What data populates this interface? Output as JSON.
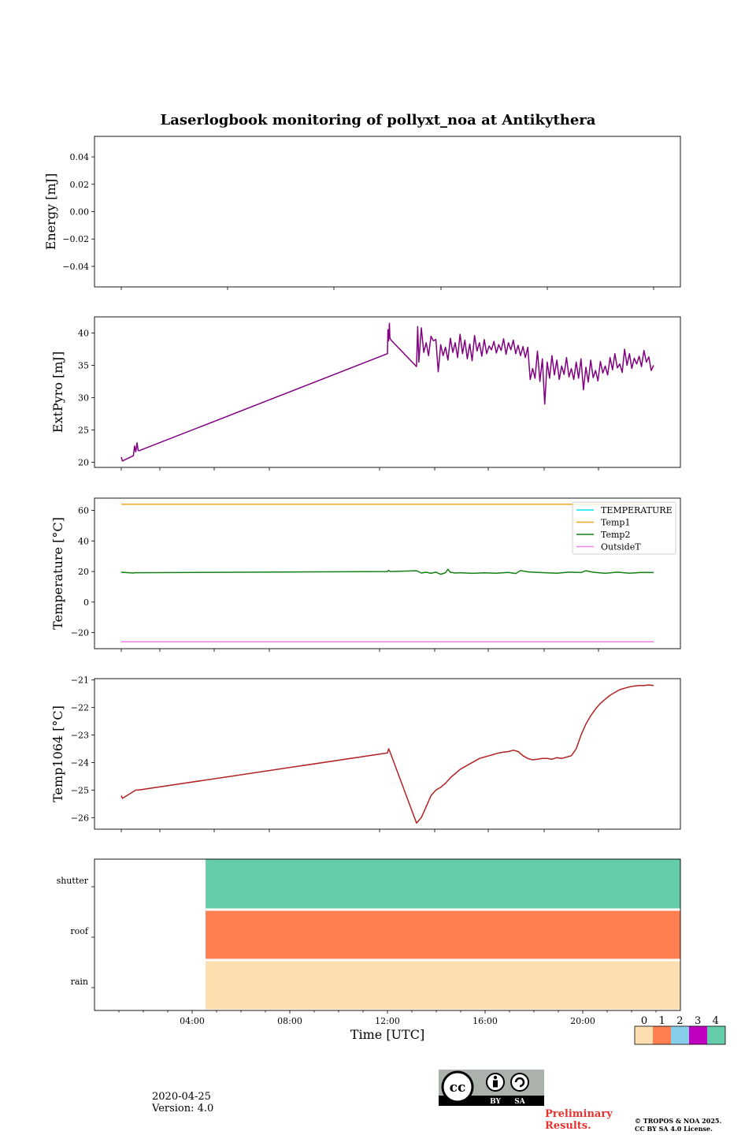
{
  "title": "Laserlogbook monitoring of pollyxt_noa at Antikythera",
  "footer": {
    "date": "2020-04-25",
    "version": "Version: 4.0",
    "preliminary": [
      "Preliminary",
      "Results."
    ],
    "copyright": [
      "© TROPOS & NOA 2025.",
      "CC BY SA 4.0 License."
    ],
    "cc_badge": {
      "by": "BY",
      "sa": "SA"
    }
  },
  "colors": {
    "extpyro": "#800080",
    "temperature": "#00e5ee",
    "temp1": "#f5a623",
    "temp2": "#128012",
    "outside": "#ee82ee",
    "temp1064": "#b22222",
    "flag0": "#fddeb1",
    "flag1": "#ff7f50",
    "flag2": "#87ceeb",
    "flag3": "#c000c0",
    "flag4": "#66cdaa"
  },
  "chart_data": [
    {
      "type": "line",
      "panel": "energy",
      "ylabel": "Energy [mJ]",
      "ylim": [
        -0.055,
        0.055
      ],
      "yticks": [
        0.04,
        0.02,
        0.0,
        -0.02,
        -0.04
      ],
      "ytick_labels": [
        "0.04",
        "0.02",
        "0.00",
        "−0.02",
        "−0.04"
      ],
      "series": []
    },
    {
      "type": "line",
      "panel": "extpyro",
      "ylabel": "ExtPyro [mJ]",
      "ylim": [
        19.2,
        42.5
      ],
      "yticks": [
        20,
        25,
        30,
        35,
        40
      ],
      "ytick_labels": [
        "20",
        "25",
        "30",
        "35",
        "40"
      ],
      "series": [
        {
          "color_key": "extpyro",
          "x": [
            1.0,
            1.05,
            1.5,
            1.55,
            1.6,
            1.65,
            1.7,
            1.75,
            12.0,
            12.02,
            12.05,
            12.08,
            12.1,
            12.15,
            13.2,
            13.25,
            13.3,
            13.4,
            13.5,
            13.6,
            13.7,
            13.8,
            13.9,
            14.0,
            14.1,
            14.2,
            14.3,
            14.4,
            14.5,
            14.6,
            14.7,
            14.8,
            14.9,
            15.0,
            15.1,
            15.2,
            15.3,
            15.4,
            15.5,
            15.6,
            15.7,
            15.8,
            15.9,
            16.0,
            16.1,
            16.2,
            16.3,
            16.4,
            16.5,
            16.6,
            16.7,
            16.8,
            16.9,
            17.0,
            17.1,
            17.2,
            17.3,
            17.4,
            17.5,
            17.6,
            17.7,
            17.8,
            17.9,
            18.0,
            18.1,
            18.2,
            18.3,
            18.4,
            18.5,
            18.6,
            18.7,
            18.8,
            18.9,
            19.0,
            19.1,
            19.2,
            19.3,
            19.4,
            19.5,
            19.6,
            19.7,
            19.8,
            19.9,
            20.0,
            20.1,
            20.2,
            20.3,
            20.4,
            20.5,
            20.6,
            20.7,
            20.8,
            20.9,
            21.0,
            21.1,
            21.2,
            21.3,
            21.4,
            21.5,
            21.6,
            21.7,
            21.8,
            21.9,
            22.0,
            22.1,
            22.2,
            22.3,
            22.4,
            22.5,
            22.6,
            22.7,
            22.8,
            22.9,
            23.0
          ],
          "y": [
            20.8,
            20.2,
            21.0,
            22.5,
            21.6,
            23.0,
            21.8,
            21.8,
            36.8,
            40.5,
            38.8,
            41.5,
            39.2,
            38.9,
            34.8,
            41.0,
            35.5,
            40.8,
            37.0,
            38.5,
            36.5,
            39.5,
            38.8,
            39.0,
            34.0,
            38.2,
            36.5,
            37.8,
            35.8,
            39.2,
            37.0,
            38.5,
            36.2,
            39.8,
            36.8,
            38.9,
            36.0,
            38.3,
            35.7,
            39.6,
            37.2,
            38.5,
            36.4,
            39.0,
            36.8,
            38.0,
            37.4,
            38.7,
            36.9,
            38.2,
            37.3,
            39.1,
            36.7,
            38.5,
            37.4,
            38.9,
            36.8,
            38.1,
            36.5,
            37.9,
            36.2,
            37.8,
            32.8,
            34.5,
            33.0,
            37.2,
            32.5,
            36.0,
            29.0,
            35.5,
            33.0,
            36.5,
            33.5,
            35.8,
            32.8,
            34.9,
            33.6,
            36.2,
            33.2,
            34.5,
            32.8,
            35.5,
            33.0,
            36.0,
            31.2,
            34.7,
            32.4,
            35.8,
            33.1,
            34.2,
            32.6,
            35.6,
            33.8,
            34.9,
            33.5,
            36.2,
            34.3,
            36.8,
            34.6,
            35.2,
            33.9,
            37.5,
            35.0,
            36.8,
            34.5,
            36.1,
            35.2,
            36.4,
            34.8,
            37.3,
            35.5,
            36.3,
            34.2,
            35.0
          ]
        }
      ]
    },
    {
      "type": "line",
      "panel": "temperature",
      "ylabel": "Temperature [°C]",
      "ylim": [
        -30.5,
        68
      ],
      "yticks": [
        60,
        40,
        20,
        0,
        -20
      ],
      "ytick_labels": [
        "60",
        "40",
        "20",
        "0",
        "−20"
      ],
      "legend": "top-right",
      "series": [
        {
          "name": "TEMPERATURE",
          "color_key": "temperature",
          "x": [],
          "y": []
        },
        {
          "name": "Temp1",
          "color_key": "temp1",
          "x": [
            1.0,
            23.0
          ],
          "y": [
            64,
            64
          ]
        },
        {
          "name": "Temp2",
          "color_key": "temp2",
          "x": [
            1.0,
            1.5,
            1.55,
            12.0,
            12.05,
            12.1,
            13.2,
            13.4,
            13.6,
            13.8,
            14.0,
            14.2,
            14.4,
            14.5,
            14.6,
            14.8,
            15.0,
            15.5,
            16.0,
            16.5,
            17.0,
            17.3,
            17.5,
            17.8,
            18.0,
            18.5,
            19.0,
            19.5,
            20.0,
            20.2,
            20.5,
            21.0,
            21.5,
            22.0,
            22.5,
            23.0
          ],
          "y": [
            19.5,
            19.0,
            19.2,
            20.0,
            20.8,
            20.0,
            20.5,
            19.0,
            19.5,
            18.8,
            19.6,
            18.2,
            19.2,
            21.5,
            19.5,
            19.0,
            19.2,
            18.8,
            19.1,
            18.9,
            19.4,
            18.7,
            20.6,
            19.8,
            19.6,
            19.2,
            18.9,
            19.6,
            19.3,
            20.5,
            19.5,
            18.8,
            19.6,
            18.9,
            19.4,
            19.3
          ]
        },
        {
          "name": "OutsideT",
          "color_key": "outside",
          "x": [
            1.0,
            23.0
          ],
          "y": [
            -26,
            -26
          ]
        }
      ]
    },
    {
      "type": "line",
      "panel": "temp1064",
      "ylabel": "Temp1064 [°C]",
      "ylim": [
        -26.42,
        -20.95
      ],
      "yticks": [
        -21,
        -22,
        -23,
        -24,
        -25,
        -26
      ],
      "ytick_labels": [
        "−21",
        "−22",
        "−23",
        "−24",
        "−25",
        "−26"
      ],
      "series": [
        {
          "color_key": "temp1064",
          "x": [
            1.0,
            1.05,
            1.5,
            1.6,
            1.7,
            12.0,
            12.05,
            12.1,
            13.2,
            13.4,
            13.6,
            13.8,
            14.0,
            14.2,
            14.4,
            14.6,
            14.8,
            15.0,
            15.2,
            15.4,
            15.6,
            15.8,
            16.0,
            16.2,
            16.4,
            16.6,
            16.8,
            17.0,
            17.2,
            17.4,
            17.6,
            17.8,
            18.0,
            18.2,
            18.4,
            18.6,
            18.8,
            19.0,
            19.2,
            19.4,
            19.6,
            19.8,
            20.0,
            20.2,
            20.4,
            20.6,
            20.8,
            21.0,
            21.2,
            21.4,
            21.6,
            21.8,
            22.0,
            22.2,
            22.4,
            22.6,
            22.8,
            23.0
          ],
          "y": [
            -25.2,
            -25.3,
            -25.05,
            -25.0,
            -25.0,
            -23.65,
            -23.5,
            -23.6,
            -26.2,
            -26.0,
            -25.6,
            -25.2,
            -25.0,
            -24.9,
            -24.75,
            -24.55,
            -24.4,
            -24.25,
            -24.15,
            -24.05,
            -23.95,
            -23.85,
            -23.8,
            -23.75,
            -23.7,
            -23.65,
            -23.62,
            -23.6,
            -23.55,
            -23.6,
            -23.75,
            -23.85,
            -23.9,
            -23.88,
            -23.85,
            -23.85,
            -23.88,
            -23.82,
            -23.85,
            -23.8,
            -23.75,
            -23.5,
            -23.0,
            -22.6,
            -22.3,
            -22.05,
            -21.85,
            -21.7,
            -21.55,
            -21.45,
            -21.35,
            -21.3,
            -21.25,
            -21.22,
            -21.2,
            -21.2,
            -21.18,
            -21.2
          ]
        }
      ]
    },
    {
      "type": "heatmap",
      "panel": "flags",
      "xlabel": "Time [UTC]",
      "categories": [
        "shutter",
        "roof",
        "rain"
      ],
      "xlim": [
        0,
        24
      ],
      "xticks": [
        4,
        8,
        12,
        16,
        20
      ],
      "xtick_labels": [
        "04:00",
        "08:00",
        "12:00",
        "16:00",
        "20:00"
      ],
      "bands": [
        {
          "category": "shutter",
          "start": 4.55,
          "end": 24,
          "value": 4
        },
        {
          "category": "roof",
          "start": 4.55,
          "end": 24,
          "value": 1
        },
        {
          "category": "rain",
          "start": 4.55,
          "end": 24,
          "value": 0
        }
      ],
      "colorbar": {
        "ticks": [
          0,
          1,
          2,
          3,
          4
        ],
        "tick_labels": [
          "0",
          "1",
          "2",
          "3",
          "4"
        ]
      }
    }
  ]
}
